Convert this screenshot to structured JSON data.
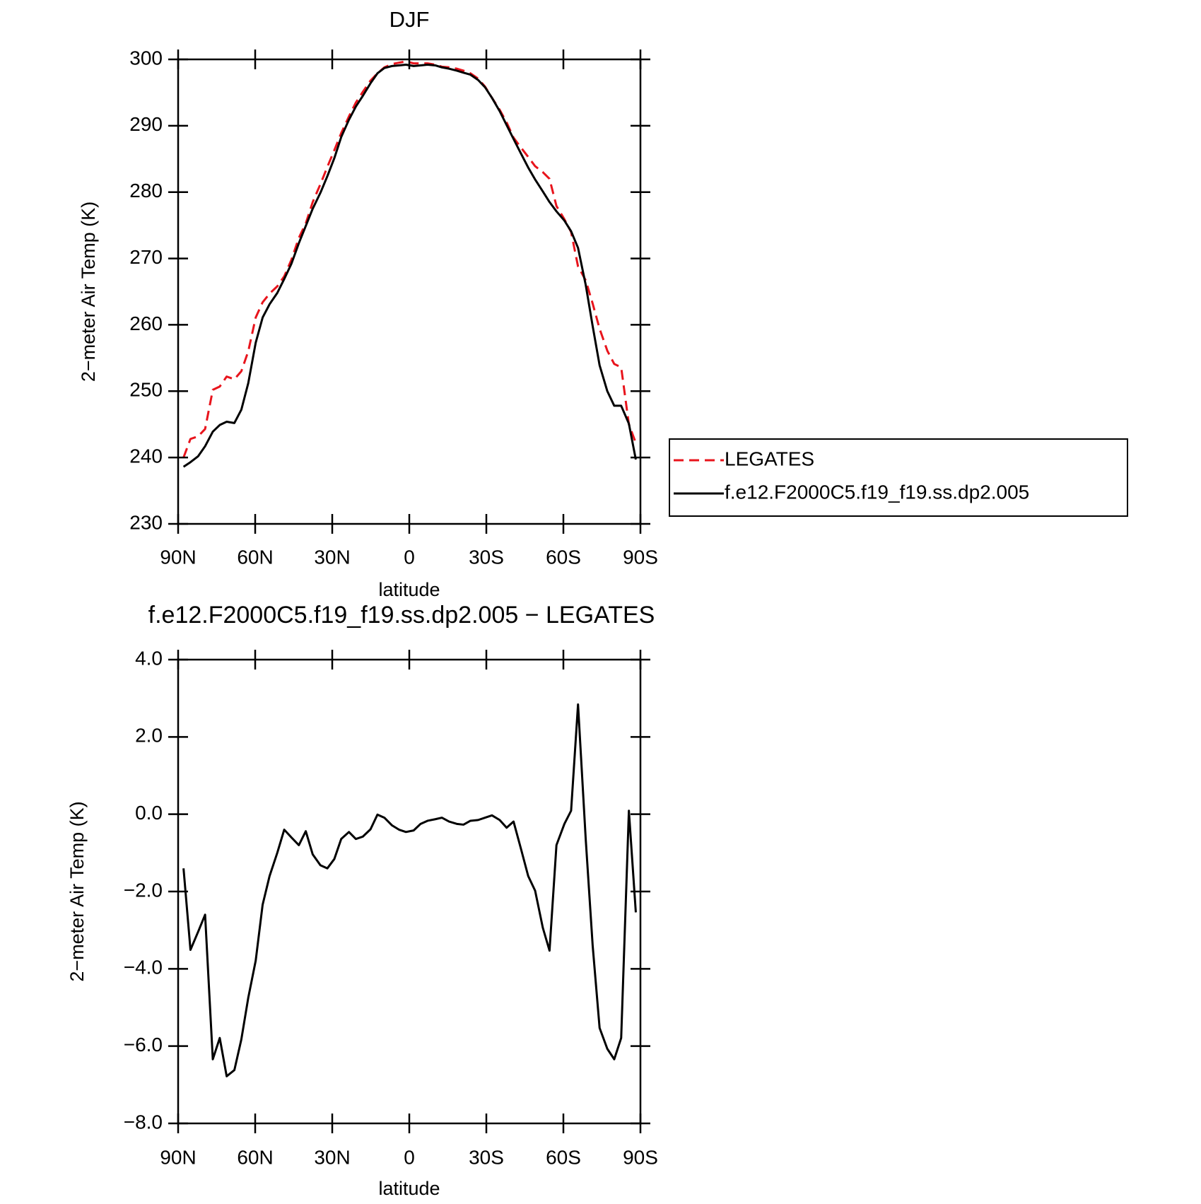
{
  "chart_data": [
    {
      "type": "line",
      "title": "DJF",
      "x_label": "latitude",
      "y_label": "2−meter Air Temp (K)",
      "x": [
        87.9,
        85.2,
        82.2,
        79.5,
        76.5,
        73.8,
        71.1,
        68.1,
        65.4,
        62.7,
        59.8,
        57.1,
        54.4,
        51.4,
        48.7,
        45.9,
        43.0,
        40.3,
        37.6,
        34.6,
        31.9,
        29.2,
        26.5,
        23.5,
        20.8,
        18.1,
        15.1,
        12.4,
        9.7,
        6.7,
        4.0,
        1.3,
        -1.7,
        -4.4,
        -7.1,
        -10.1,
        -12.7,
        -15.5,
        -18.5,
        -21.1,
        -23.8,
        -26.8,
        -29.5,
        -32.2,
        -35.2,
        -37.9,
        -40.6,
        -43.5,
        -46.3,
        -49.0,
        -52.0,
        -54.6,
        -57.3,
        -60.4,
        -63.0,
        -65.7,
        -68.7,
        -71.4,
        -74.1,
        -77.1,
        -79.8,
        -82.5,
        -85.5,
        -88.2
      ],
      "series": [
        {
          "name": "LEGATES",
          "color": "#e8141c",
          "dash": true,
          "values": [
            240.0,
            242.8,
            243.2,
            244.3,
            250.2,
            250.7,
            252.2,
            251.8,
            253.0,
            256.0,
            261.1,
            263.4,
            264.7,
            265.8,
            267.3,
            269.8,
            273.1,
            275.3,
            278.5,
            281.2,
            283.8,
            286.3,
            288.9,
            291.4,
            293.5,
            295.1,
            296.8,
            297.9,
            298.8,
            299.3,
            299.5,
            299.7,
            299.4,
            299.4,
            299.4,
            299.2,
            298.9,
            298.8,
            298.6,
            298.3,
            297.9,
            297.1,
            295.9,
            294.2,
            292.4,
            290.5,
            288.2,
            286.7,
            285.3,
            283.9,
            283.0,
            282.0,
            277.9,
            275.9,
            274.0,
            268.8,
            266.7,
            263.2,
            259.4,
            256.1,
            254.1,
            253.6,
            245.0,
            242.2
          ]
        },
        {
          "name": "f.e12.F2000C5.f19_f19.ss.dp2.005",
          "color": "#000000",
          "dash": false,
          "values": [
            238.6,
            239.3,
            240.2,
            241.7,
            243.9,
            244.9,
            245.4,
            245.2,
            247.2,
            251.2,
            257.3,
            261.1,
            263.1,
            264.8,
            266.9,
            269.2,
            272.3,
            274.9,
            277.5,
            279.9,
            282.4,
            285.1,
            288.3,
            290.9,
            292.9,
            294.5,
            296.4,
            297.9,
            298.7,
            299.0,
            299.1,
            299.2,
            299.0,
            299.1,
            299.2,
            299.1,
            298.8,
            298.6,
            298.3,
            298.0,
            297.7,
            296.9,
            295.8,
            294.2,
            292.2,
            290.1,
            288.0,
            285.8,
            283.7,
            281.9,
            280.1,
            278.5,
            277.1,
            275.7,
            274.1,
            271.6,
            266.0,
            259.8,
            253.9,
            250.0,
            247.8,
            247.8,
            245.1,
            239.7
          ]
        }
      ],
      "xlim": [
        90,
        -90
      ],
      "xticks": [
        {
          "value": 90,
          "label": "90N"
        },
        {
          "value": 60,
          "label": "60N"
        },
        {
          "value": 30,
          "label": "30N"
        },
        0,
        {
          "value": -30,
          "label": "30S"
        },
        {
          "value": -60,
          "label": "60S"
        },
        {
          "value": -90,
          "label": "90S"
        }
      ],
      "ylim": [
        230,
        300
      ],
      "yticks": [
        230,
        240,
        250,
        260,
        270,
        280,
        290,
        300
      ],
      "legend": "right"
    },
    {
      "type": "line",
      "title": "f.e12.F2000C5.f19_f19.ss.dp2.005 − LEGATES",
      "x_label": "latitude",
      "y_label": "2−meter Air Temp (K)",
      "x": [
        87.9,
        85.2,
        82.2,
        79.5,
        76.5,
        73.8,
        71.1,
        68.1,
        65.4,
        62.7,
        59.8,
        57.1,
        54.4,
        51.4,
        48.7,
        45.9,
        43.0,
        40.3,
        37.6,
        34.6,
        31.9,
        29.2,
        26.5,
        23.5,
        20.8,
        18.1,
        15.1,
        12.4,
        9.7,
        6.7,
        4.0,
        1.3,
        -1.7,
        -4.4,
        -7.1,
        -10.1,
        -12.7,
        -15.5,
        -18.5,
        -21.1,
        -23.8,
        -26.8,
        -29.5,
        -32.2,
        -35.2,
        -37.9,
        -40.6,
        -43.5,
        -46.3,
        -49.0,
        -52.0,
        -54.6,
        -57.3,
        -60.4,
        -63.0,
        -65.7,
        -68.7,
        -71.4,
        -74.1,
        -77.1,
        -79.8,
        -82.5,
        -85.5,
        -88.2
      ],
      "series": [
        {
          "color": "#000000",
          "dash": false,
          "values": [
            -1.4,
            -3.51,
            -3.04,
            -2.6,
            -6.34,
            -5.79,
            -6.78,
            -6.62,
            -5.83,
            -4.75,
            -3.79,
            -2.34,
            -1.6,
            -1.0,
            -0.4,
            -0.6,
            -0.8,
            -0.44,
            -1.04,
            -1.32,
            -1.4,
            -1.16,
            -0.64,
            -0.46,
            -0.64,
            -0.58,
            -0.39,
            -0.01,
            -0.09,
            -0.29,
            -0.4,
            -0.46,
            -0.42,
            -0.25,
            -0.17,
            -0.13,
            -0.09,
            -0.19,
            -0.25,
            -0.27,
            -0.17,
            -0.15,
            -0.09,
            -0.03,
            -0.15,
            -0.35,
            -0.19,
            -0.9,
            -1.6,
            -1.98,
            -2.94,
            -3.53,
            -0.8,
            -0.25,
            0.09,
            2.84,
            -0.65,
            -3.4,
            -5.53,
            -6.07,
            -6.34,
            -5.79,
            0.09,
            -2.54
          ]
        }
      ],
      "xlim": [
        90,
        -90
      ],
      "xticks": [
        {
          "value": 90,
          "label": "90N"
        },
        {
          "value": 60,
          "label": "60N"
        },
        {
          "value": 30,
          "label": "30N"
        },
        0,
        {
          "value": -30,
          "label": "30S"
        },
        {
          "value": -60,
          "label": "60S"
        },
        {
          "value": -90,
          "label": "90S"
        }
      ],
      "ylim": [
        -8,
        4
      ],
      "yticks": [
        {
          "value": -8,
          "label": "−8.0"
        },
        {
          "value": -6,
          "label": "−6.0"
        },
        {
          "value": -4,
          "label": "−4.0"
        },
        {
          "value": -2,
          "label": "−2.0"
        },
        {
          "value": 0,
          "label": "0.0"
        },
        {
          "value": 2,
          "label": "2.0"
        },
        {
          "value": 4,
          "label": "4.0"
        }
      ]
    }
  ]
}
